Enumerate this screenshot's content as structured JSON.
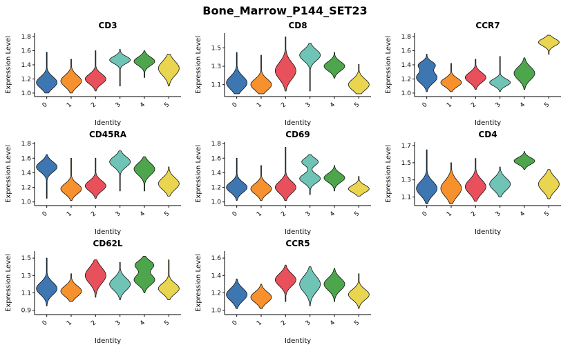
{
  "title": "Bone_Marrow_P144_SET23",
  "shared": {
    "x_label": "Identity",
    "y_label": "Expression Level",
    "categories": [
      "0",
      "1",
      "2",
      "3",
      "4",
      "5"
    ]
  },
  "palette": [
    "#3D76B0",
    "#F6912E",
    "#E8505B",
    "#6FC4B6",
    "#4DA64C",
    "#E9D54F"
  ],
  "chart_data": [
    {
      "type": "violin",
      "title": "CD3",
      "ylim": [
        0.95,
        1.85
      ],
      "yticks": [
        1.0,
        1.2,
        1.4,
        1.6,
        1.8
      ],
      "violins": [
        {
          "cluster": "0",
          "peak": 1.15,
          "spread": 0.08,
          "min": 1.0,
          "max": 1.58
        },
        {
          "cluster": "1",
          "peak": 1.17,
          "spread": 0.08,
          "min": 1.0,
          "max": 1.48
        },
        {
          "cluster": "2",
          "peak": 1.2,
          "spread": 0.07,
          "min": 1.03,
          "max": 1.6
        },
        {
          "cluster": "3",
          "peak": 1.47,
          "spread": 0.05,
          "min": 1.1,
          "max": 1.62
        },
        {
          "cluster": "4",
          "peak": 1.45,
          "spread": 0.06,
          "min": 1.22,
          "max": 1.6
        },
        {
          "cluster": "5",
          "peak": 1.35,
          "spread": 0.1,
          "min": 1.1,
          "max": 1.55
        }
      ]
    },
    {
      "type": "violin",
      "title": "CD8",
      "ylim": [
        0.97,
        1.66
      ],
      "yticks": [
        1.1,
        1.3,
        1.5
      ],
      "violins": [
        {
          "cluster": "0",
          "peak": 1.12,
          "spread": 0.07,
          "min": 1.0,
          "max": 1.45
        },
        {
          "cluster": "1",
          "peak": 1.1,
          "spread": 0.06,
          "min": 1.0,
          "max": 1.42
        },
        {
          "cluster": "2",
          "peak": 1.25,
          "spread": 0.09,
          "min": 1.03,
          "max": 1.62
        },
        {
          "cluster": "3",
          "peak": 1.42,
          "spread": 0.06,
          "min": 1.03,
          "max": 1.55
        },
        {
          "cluster": "4",
          "peak": 1.3,
          "spread": 0.05,
          "min": 1.17,
          "max": 1.45
        },
        {
          "cluster": "5",
          "peak": 1.1,
          "spread": 0.06,
          "min": 1.0,
          "max": 1.32
        }
      ]
    },
    {
      "type": "violin",
      "title": "CCR7",
      "ylim": [
        0.95,
        1.85
      ],
      "yticks": [
        1.0,
        1.2,
        1.4,
        1.6,
        1.8
      ],
      "violins": [
        {
          "cluster": "0",
          "peak": 1.22,
          "spread": 0.08,
          "peak2": 1.4,
          "spread2": 0.05,
          "amp2": 0.75,
          "min": 1.02,
          "max": 1.55
        },
        {
          "cluster": "1",
          "peak": 1.15,
          "spread": 0.06,
          "min": 1.02,
          "max": 1.42
        },
        {
          "cluster": "2",
          "peak": 1.22,
          "spread": 0.07,
          "min": 1.05,
          "max": 1.48
        },
        {
          "cluster": "3",
          "peak": 1.15,
          "spread": 0.05,
          "min": 1.02,
          "max": 1.52
        },
        {
          "cluster": "4",
          "peak": 1.28,
          "spread": 0.09,
          "min": 1.05,
          "max": 1.5
        },
        {
          "cluster": "5",
          "peak": 1.72,
          "spread": 0.05,
          "min": 1.55,
          "max": 1.82
        }
      ]
    },
    {
      "type": "violin",
      "title": "CD45RA",
      "ylim": [
        0.95,
        1.82
      ],
      "yticks": [
        1.0,
        1.2,
        1.4,
        1.6,
        1.8
      ],
      "violins": [
        {
          "cluster": "0",
          "peak": 1.48,
          "spread": 0.07,
          "min": 1.05,
          "max": 1.65
        },
        {
          "cluster": "1",
          "peak": 1.18,
          "spread": 0.07,
          "min": 1.02,
          "max": 1.6
        },
        {
          "cluster": "2",
          "peak": 1.22,
          "spread": 0.07,
          "min": 1.05,
          "max": 1.6
        },
        {
          "cluster": "3",
          "peak": 1.55,
          "spread": 0.07,
          "min": 1.15,
          "max": 1.7
        },
        {
          "cluster": "4",
          "peak": 1.45,
          "spread": 0.08,
          "min": 1.15,
          "max": 1.62
        },
        {
          "cluster": "5",
          "peak": 1.25,
          "spread": 0.08,
          "min": 1.08,
          "max": 1.48
        }
      ]
    },
    {
      "type": "violin",
      "title": "CD69",
      "ylim": [
        0.95,
        1.82
      ],
      "yticks": [
        1.0,
        1.2,
        1.4,
        1.6,
        1.8
      ],
      "violins": [
        {
          "cluster": "0",
          "peak": 1.2,
          "spread": 0.07,
          "min": 1.02,
          "max": 1.6
        },
        {
          "cluster": "1",
          "peak": 1.18,
          "spread": 0.07,
          "min": 1.02,
          "max": 1.5
        },
        {
          "cluster": "2",
          "peak": 1.2,
          "spread": 0.08,
          "min": 1.02,
          "max": 1.75
        },
        {
          "cluster": "3",
          "peak": 1.32,
          "spread": 0.06,
          "peak2": 1.55,
          "spread2": 0.05,
          "amp2": 0.8,
          "min": 1.1,
          "max": 1.65
        },
        {
          "cluster": "4",
          "peak": 1.33,
          "spread": 0.06,
          "min": 1.15,
          "max": 1.5
        },
        {
          "cluster": "5",
          "peak": 1.18,
          "spread": 0.05,
          "min": 1.08,
          "max": 1.35
        }
      ]
    },
    {
      "type": "violin",
      "title": "CD4",
      "ylim": [
        1.0,
        1.74
      ],
      "yticks": [
        1.1,
        1.3,
        1.5,
        1.7
      ],
      "violins": [
        {
          "cluster": "0",
          "peak": 1.2,
          "spread": 0.08,
          "min": 1.02,
          "max": 1.65
        },
        {
          "cluster": "1",
          "peak": 1.2,
          "spread": 0.09,
          "min": 1.02,
          "max": 1.5
        },
        {
          "cluster": "2",
          "peak": 1.22,
          "spread": 0.08,
          "min": 1.05,
          "max": 1.55
        },
        {
          "cluster": "3",
          "peak": 1.25,
          "spread": 0.07,
          "min": 1.1,
          "max": 1.45
        },
        {
          "cluster": "4",
          "peak": 1.52,
          "spread": 0.04,
          "min": 1.42,
          "max": 1.63
        },
        {
          "cluster": "5",
          "peak": 1.25,
          "spread": 0.08,
          "min": 1.08,
          "max": 1.42
        }
      ]
    },
    {
      "type": "violin",
      "title": "CD62L",
      "ylim": [
        0.85,
        1.58
      ],
      "yticks": [
        0.9,
        1.1,
        1.3,
        1.5
      ],
      "violins": [
        {
          "cluster": "0",
          "peak": 1.15,
          "spread": 0.07,
          "min": 0.95,
          "max": 1.5
        },
        {
          "cluster": "1",
          "peak": 1.12,
          "spread": 0.06,
          "min": 1.0,
          "max": 1.32
        },
        {
          "cluster": "2",
          "peak": 1.3,
          "spread": 0.09,
          "min": 1.05,
          "max": 1.48
        },
        {
          "cluster": "3",
          "peak": 1.2,
          "spread": 0.07,
          "min": 1.02,
          "max": 1.45
        },
        {
          "cluster": "4",
          "peak": 1.25,
          "spread": 0.06,
          "peak2": 1.42,
          "spread2": 0.05,
          "amp2": 0.9,
          "min": 1.1,
          "max": 1.52
        },
        {
          "cluster": "5",
          "peak": 1.15,
          "spread": 0.06,
          "min": 1.02,
          "max": 1.48
        }
      ]
    },
    {
      "type": "violin",
      "title": "CCR5",
      "ylim": [
        0.95,
        1.68
      ],
      "yticks": [
        1.0,
        1.2,
        1.4,
        1.6
      ],
      "violins": [
        {
          "cluster": "0",
          "peak": 1.18,
          "spread": 0.07,
          "min": 1.02,
          "max": 1.36
        },
        {
          "cluster": "1",
          "peak": 1.15,
          "spread": 0.06,
          "min": 1.02,
          "max": 1.3
        },
        {
          "cluster": "2",
          "peak": 1.35,
          "spread": 0.07,
          "min": 1.1,
          "max": 1.52
        },
        {
          "cluster": "3",
          "peak": 1.3,
          "spread": 0.09,
          "min": 1.05,
          "max": 1.5
        },
        {
          "cluster": "4",
          "peak": 1.3,
          "spread": 0.07,
          "min": 1.1,
          "max": 1.48
        },
        {
          "cluster": "5",
          "peak": 1.18,
          "spread": 0.06,
          "min": 1.02,
          "max": 1.42
        }
      ]
    }
  ]
}
